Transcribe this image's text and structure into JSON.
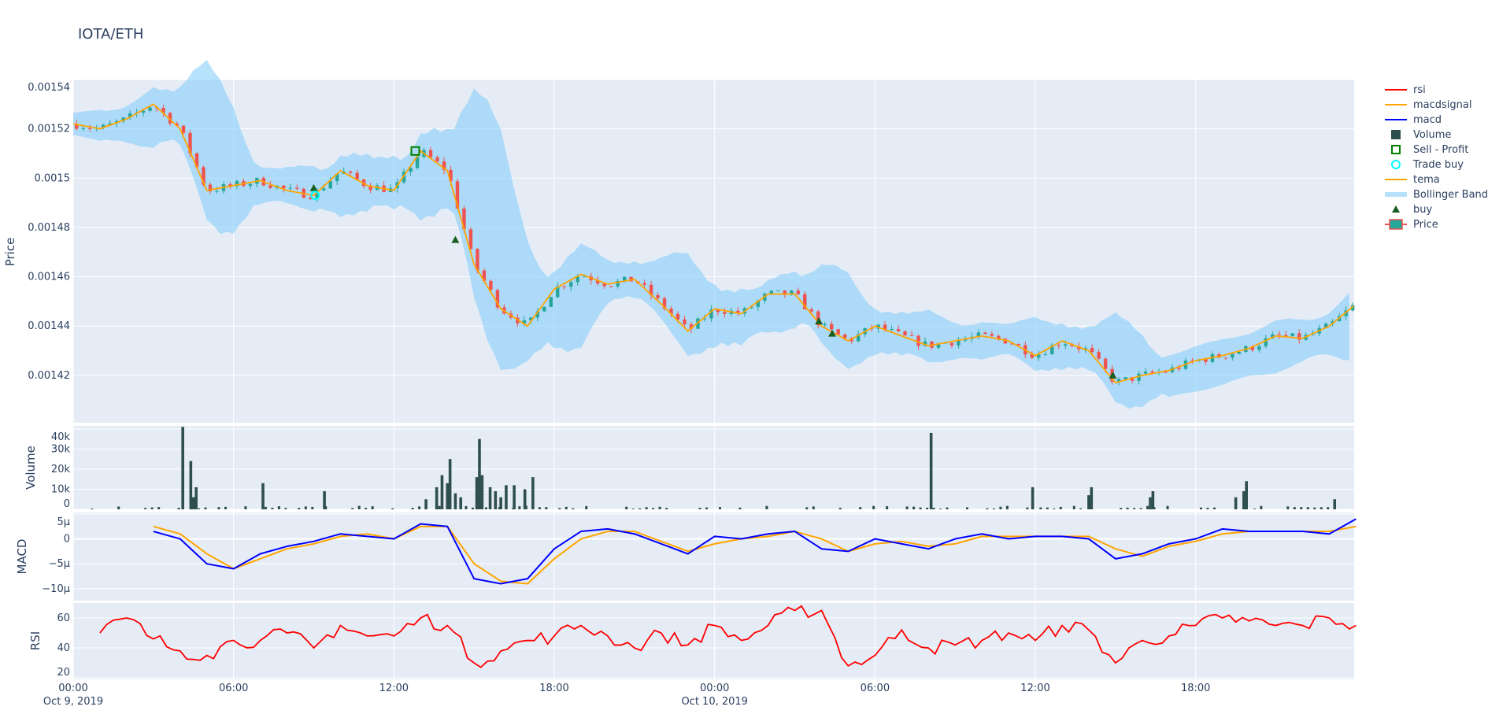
{
  "chart_data": {
    "type": "candlestick",
    "title": "IOTA/ETH",
    "x_unit": "hours since Oct 9, 2019 00:00",
    "x_ticks": [
      {
        "h": 0,
        "label": "00:00",
        "sub": "Oct 9, 2019"
      },
      {
        "h": 6,
        "label": "06:00",
        "sub": ""
      },
      {
        "h": 12,
        "label": "12:00",
        "sub": ""
      },
      {
        "h": 18,
        "label": "18:00",
        "sub": ""
      },
      {
        "h": 24,
        "label": "00:00",
        "sub": "Oct 10, 2019"
      },
      {
        "h": 30,
        "label": "06:00",
        "sub": ""
      },
      {
        "h": 36,
        "label": "12:00",
        "sub": ""
      },
      {
        "h": 42,
        "label": "18:00",
        "sub": ""
      }
    ],
    "x_range": [
      0,
      47.93
    ],
    "price": {
      "ylabel": "Price",
      "ylim": [
        0.0014008,
        0.00154
      ],
      "ticks": [
        {
          "v": 0.00142,
          "label": "0.00142"
        },
        {
          "v": 0.00144,
          "label": "0.00144"
        },
        {
          "v": 0.00146,
          "label": "0.00146"
        },
        {
          "v": 0.00148,
          "label": "0.00148"
        },
        {
          "v": 0.0015,
          "label": "0.0015"
        },
        {
          "v": 0.00152,
          "label": "0.00152"
        },
        {
          "v": 0.00154,
          "label": "0.00154"
        }
      ],
      "hourly_close": [
        0.001522,
        0.00152,
        0.001524,
        0.00153,
        0.00152,
        0.001495,
        0.001497,
        0.001499,
        0.001495,
        0.001493,
        0.001503,
        0.001497,
        0.001495,
        0.001511,
        0.001503,
        0.001465,
        0.001447,
        0.00144,
        0.001455,
        0.001461,
        0.001457,
        0.001459,
        0.001449,
        0.001438,
        0.001447,
        0.001445,
        0.001453,
        0.001453,
        0.00144,
        0.001434,
        0.00144,
        0.001436,
        0.001432,
        0.001434,
        0.001436,
        0.001434,
        0.001428,
        0.001434,
        0.00143,
        0.001417,
        0.00142,
        0.001422,
        0.001426,
        0.001428,
        0.001431,
        0.001436,
        0.001435,
        0.00144,
        0.001449
      ],
      "buy_signals": [
        {
          "h": 9.0,
          "price": 0.001496
        },
        {
          "h": 14.3,
          "price": 0.001475
        },
        {
          "h": 27.9,
          "price": 0.001442
        },
        {
          "h": 28.4,
          "price": 0.001437
        },
        {
          "h": 38.9,
          "price": 0.00142
        }
      ],
      "trade_buy": [
        {
          "h": 9.05,
          "price": 0.001493
        }
      ],
      "sell_profit": [
        {
          "h": 12.8,
          "price": 0.001511
        }
      ],
      "colors": {
        "increasing": "#26a69a",
        "decreasing": "#ef5350",
        "tema": "#FFA500",
        "bollinger": "rgba(135,206,250,0.6)",
        "buy": "#1b5e20",
        "trade_buy": "#00ffff",
        "sell_profit": "#008000"
      }
    },
    "volume": {
      "ylabel": "Volume",
      "ylim": [
        0,
        41500
      ],
      "ticks": [
        {
          "v": 0,
          "label": "0"
        },
        {
          "v": 10000,
          "label": "10k"
        },
        {
          "v": 20000,
          "label": "20k"
        },
        {
          "v": 30000,
          "label": "30k"
        },
        {
          "v": 40000,
          "label": "40k"
        }
      ],
      "baseline": 700,
      "spikes": [
        [
          4.1,
          41000
        ],
        [
          4.4,
          24000
        ],
        [
          4.6,
          11000
        ],
        [
          4.5,
          6000
        ],
        [
          7.1,
          13000
        ],
        [
          9.4,
          9000
        ],
        [
          13.2,
          5000
        ],
        [
          13.6,
          11000
        ],
        [
          13.8,
          17000
        ],
        [
          14.0,
          13000
        ],
        [
          14.1,
          25000
        ],
        [
          14.3,
          8000
        ],
        [
          14.5,
          6000
        ],
        [
          15.1,
          16000
        ],
        [
          15.2,
          35000
        ],
        [
          15.3,
          17000
        ],
        [
          15.6,
          11000
        ],
        [
          15.8,
          9000
        ],
        [
          16.2,
          12000
        ],
        [
          16.5,
          12000
        ],
        [
          16.9,
          10000
        ],
        [
          17.2,
          16000
        ],
        [
          16.0,
          6000
        ],
        [
          32.1,
          38000
        ],
        [
          35.9,
          11000
        ],
        [
          38.0,
          7000
        ],
        [
          38.1,
          11000
        ],
        [
          40.3,
          6000
        ],
        [
          40.4,
          9000
        ],
        [
          43.5,
          6000
        ],
        [
          43.8,
          9000
        ],
        [
          43.9,
          14000
        ],
        [
          47.2,
          5000
        ]
      ],
      "color": "#2f4f4f"
    },
    "macd": {
      "ylabel": "MACD",
      "ylim": [
        -12.4,
        5.3
      ],
      "unit": "μ",
      "ticks": [
        {
          "v": 5,
          "label": "5μ"
        },
        {
          "v": 0,
          "label": "0"
        },
        {
          "v": -5,
          "label": "−5μ"
        },
        {
          "v": -10,
          "label": "−10μ"
        }
      ],
      "start_hour": 3,
      "macd": [
        1.5,
        0,
        -5,
        -6,
        -3,
        -1.5,
        -0.5,
        1,
        0.5,
        0,
        3,
        2.5,
        -8,
        -9,
        -8,
        -2,
        1.5,
        2,
        1,
        -1,
        -3,
        0.5,
        0,
        1,
        1.5,
        -2,
        -2.5,
        0,
        -1,
        -2,
        0,
        1,
        0,
        0.5,
        0.5,
        0,
        -4,
        -3,
        -1,
        0,
        2,
        1.5,
        1.5,
        1.5,
        1,
        4
      ],
      "macdsignal": [
        2.5,
        1,
        -3,
        -6,
        -4,
        -2,
        -1,
        0.5,
        1,
        0,
        2.5,
        2.5,
        -5,
        -8.5,
        -9,
        -4,
        0,
        1.5,
        1.5,
        -0.5,
        -2.5,
        -1,
        0,
        0.5,
        1.5,
        0,
        -2.5,
        -1,
        -0.5,
        -1.5,
        -1,
        0.5,
        0.5,
        0.5,
        0.5,
        0.5,
        -2,
        -3.5,
        -1.5,
        -0.5,
        1,
        1.5,
        1.5,
        1.5,
        1.5,
        2.5
      ],
      "colors": {
        "macd": "#0000ff",
        "macdsignal": "#FFA500"
      }
    },
    "rsi": {
      "ylabel": "RSI",
      "ylim": [
        19,
        70
      ],
      "ticks": [
        {
          "v": 20,
          "label": "20"
        },
        {
          "v": 40,
          "label": "40"
        },
        {
          "v": 60,
          "label": "60"
        }
      ],
      "start_hour": 1,
      "values": [
        50,
        60,
        46,
        38,
        35,
        45,
        45,
        50,
        40,
        55,
        48,
        48,
        60,
        55,
        30,
        38,
        45,
        48,
        55,
        48,
        40,
        50,
        42,
        55,
        45,
        55,
        65,
        65,
        28,
        35,
        52,
        40,
        42,
        45,
        50,
        45,
        55,
        52,
        30,
        45,
        48,
        55,
        60,
        58,
        55,
        55,
        60,
        55
      ],
      "color": "#ff0000"
    },
    "legend": {
      "placement": "right",
      "entries": [
        {
          "name": "rsi",
          "symbol": "line",
          "color": "#ff0000"
        },
        {
          "name": "macdsignal",
          "symbol": "line",
          "color": "#FFA500"
        },
        {
          "name": "macd",
          "symbol": "line",
          "color": "#0000ff"
        },
        {
          "name": "Volume",
          "symbol": "square-filled",
          "color": "#2f4f4f"
        },
        {
          "name": "Sell - Profit",
          "symbol": "square-open",
          "color": "#008000"
        },
        {
          "name": "Trade buy",
          "symbol": "circle-open",
          "color": "#00ffff"
        },
        {
          "name": "tema",
          "symbol": "line",
          "color": "#FFA500"
        },
        {
          "name": "Bollinger Band",
          "symbol": "band",
          "color": "rgba(135,206,250,0.6)"
        },
        {
          "name": "buy",
          "symbol": "triangle",
          "color": "#1b5e20"
        },
        {
          "name": "Price",
          "symbol": "candle",
          "color": "#26a69a"
        }
      ]
    },
    "grid": true,
    "background": "#E5ECF6"
  }
}
